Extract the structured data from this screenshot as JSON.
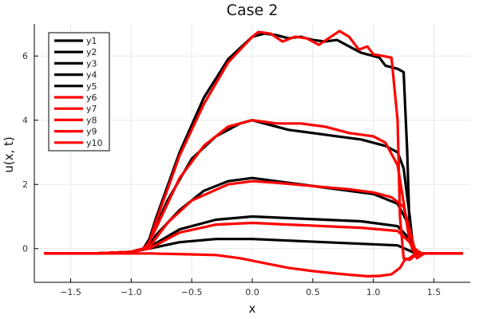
{
  "chart_data": {
    "type": "line",
    "title": "Case 2",
    "xlabel": "x",
    "ylabel": "u(x, t)",
    "xlim": [
      -1.8,
      1.8
    ],
    "ylim": [
      -1.05,
      7.0
    ],
    "xticks": [
      -1.5,
      -1.0,
      -0.5,
      0.0,
      0.5,
      1.0,
      1.5
    ],
    "xtick_labels": [
      "−1.5",
      "−1.0",
      "−0.5",
      "0.0",
      "0.5",
      "1.0",
      "1.5"
    ],
    "yticks": [
      0,
      2,
      4,
      6
    ],
    "ytick_labels": [
      "0",
      "2",
      "4",
      "6"
    ],
    "grid": true,
    "legend_position": "top-left",
    "colors": {
      "black": "#000000",
      "red": "#ff0000",
      "grid": "#e8e8e8",
      "frame": "#000000"
    },
    "series": [
      {
        "name": "y1",
        "color": "#000000",
        "x": [
          -1.72,
          -1.3,
          -1.0,
          -0.9,
          -0.85,
          -0.8,
          -0.6,
          -0.4,
          -0.2,
          0.0,
          0.1,
          0.2,
          0.3,
          0.4,
          0.5,
          0.6,
          0.7,
          0.8,
          0.9,
          1.0,
          1.05,
          1.1,
          1.15,
          1.2,
          1.25,
          1.28,
          1.3,
          1.32,
          1.35,
          1.4,
          1.5,
          1.74
        ],
        "y": [
          -0.15,
          -0.15,
          -0.1,
          0.0,
          0.3,
          0.9,
          3.0,
          4.7,
          5.9,
          6.6,
          6.7,
          6.65,
          6.55,
          6.6,
          6.5,
          6.45,
          6.5,
          6.3,
          6.1,
          6.0,
          5.95,
          5.7,
          5.65,
          5.6,
          5.5,
          3.0,
          0.5,
          0.0,
          -0.15,
          -0.15,
          -0.15,
          -0.15
        ]
      },
      {
        "name": "y2",
        "color": "#000000",
        "x": [
          -1.72,
          -1.3,
          -1.0,
          -0.88,
          -0.82,
          -0.7,
          -0.5,
          -0.3,
          -0.1,
          0.0,
          0.1,
          0.3,
          0.5,
          0.7,
          0.9,
          1.1,
          1.2,
          1.25,
          1.3,
          1.33,
          1.4,
          1.74
        ],
        "y": [
          -0.15,
          -0.15,
          -0.1,
          0.0,
          0.5,
          1.5,
          2.8,
          3.5,
          3.9,
          4.0,
          3.9,
          3.7,
          3.6,
          3.5,
          3.4,
          3.2,
          3.0,
          2.5,
          1.0,
          0.0,
          -0.15,
          -0.15
        ]
      },
      {
        "name": "y3",
        "color": "#000000",
        "x": [
          -1.72,
          -1.3,
          -1.0,
          -0.86,
          -0.8,
          -0.6,
          -0.4,
          -0.2,
          0.0,
          0.2,
          0.4,
          0.6,
          0.8,
          1.0,
          1.2,
          1.27,
          1.32,
          1.38,
          1.74
        ],
        "y": [
          -0.15,
          -0.15,
          -0.1,
          0.0,
          0.4,
          1.2,
          1.8,
          2.1,
          2.2,
          2.1,
          2.0,
          1.9,
          1.8,
          1.7,
          1.4,
          0.9,
          0.1,
          -0.15,
          -0.15
        ]
      },
      {
        "name": "y4",
        "color": "#000000",
        "x": [
          -1.72,
          -1.3,
          -1.0,
          -0.85,
          -0.6,
          -0.3,
          0.0,
          0.3,
          0.6,
          0.9,
          1.2,
          1.3,
          1.36,
          1.74
        ],
        "y": [
          -0.15,
          -0.15,
          -0.1,
          0.05,
          0.6,
          0.9,
          1.0,
          0.95,
          0.9,
          0.85,
          0.7,
          0.3,
          -0.15,
          -0.15
        ]
      },
      {
        "name": "y5",
        "color": "#000000",
        "x": [
          -1.72,
          -1.3,
          -1.0,
          -0.85,
          -0.6,
          -0.3,
          0.0,
          0.3,
          0.6,
          0.9,
          1.2,
          1.35,
          1.74
        ],
        "y": [
          -0.15,
          -0.15,
          -0.1,
          0.0,
          0.2,
          0.3,
          0.3,
          0.25,
          0.2,
          0.15,
          0.1,
          -0.15,
          -0.15
        ]
      },
      {
        "name": "y6",
        "color": "#ff0000",
        "x": [
          -1.72,
          -1.3,
          -1.0,
          -0.9,
          -0.85,
          -0.8,
          -0.6,
          -0.4,
          -0.2,
          0.0,
          0.05,
          0.15,
          0.25,
          0.35,
          0.45,
          0.55,
          0.65,
          0.72,
          0.8,
          0.88,
          0.95,
          1.0,
          1.08,
          1.15,
          1.2,
          1.22,
          1.25,
          1.3,
          1.35,
          1.4,
          1.74
        ],
        "y": [
          -0.15,
          -0.15,
          -0.1,
          0.0,
          0.2,
          0.8,
          2.9,
          4.5,
          5.8,
          6.6,
          6.75,
          6.7,
          6.45,
          6.6,
          6.55,
          6.35,
          6.6,
          6.78,
          6.6,
          6.2,
          6.3,
          6.05,
          6.0,
          5.95,
          4.0,
          1.0,
          -0.3,
          -0.35,
          -0.2,
          -0.15,
          -0.15
        ]
      },
      {
        "name": "y7",
        "color": "#ff0000",
        "x": [
          -1.72,
          -1.3,
          -1.0,
          -0.88,
          -0.8,
          -0.6,
          -0.4,
          -0.2,
          0.0,
          0.2,
          0.4,
          0.6,
          0.8,
          1.0,
          1.1,
          1.2,
          1.26,
          1.3,
          1.36,
          1.42,
          1.74
        ],
        "y": [
          -0.15,
          -0.15,
          -0.1,
          0.0,
          0.6,
          2.2,
          3.2,
          3.8,
          4.0,
          3.9,
          3.9,
          3.8,
          3.6,
          3.5,
          3.3,
          2.6,
          1.2,
          0.2,
          -0.3,
          -0.15,
          -0.15
        ]
      },
      {
        "name": "y8",
        "color": "#ff0000",
        "x": [
          -1.72,
          -1.3,
          -1.0,
          -0.86,
          -0.7,
          -0.5,
          -0.2,
          0.0,
          0.2,
          0.5,
          0.8,
          1.0,
          1.15,
          1.25,
          1.3,
          1.34,
          1.4,
          1.74
        ],
        "y": [
          -0.15,
          -0.15,
          -0.1,
          0.0,
          0.8,
          1.5,
          2.0,
          2.1,
          2.05,
          1.95,
          1.85,
          1.75,
          1.6,
          1.3,
          0.6,
          0.0,
          -0.15,
          -0.15
        ]
      },
      {
        "name": "y9",
        "color": "#ff0000",
        "x": [
          -1.72,
          -1.3,
          -1.0,
          -0.85,
          -0.6,
          -0.3,
          0.0,
          0.3,
          0.6,
          0.9,
          1.2,
          1.3,
          1.37,
          1.74
        ],
        "y": [
          -0.15,
          -0.15,
          -0.1,
          0.0,
          0.5,
          0.75,
          0.8,
          0.75,
          0.7,
          0.65,
          0.55,
          0.2,
          -0.15,
          -0.15
        ]
      },
      {
        "name": "y10",
        "color": "#ff0000",
        "x": [
          -1.72,
          -1.3,
          -1.0,
          -0.85,
          -0.6,
          -0.3,
          -0.1,
          0.1,
          0.3,
          0.5,
          0.7,
          0.85,
          0.95,
          1.05,
          1.15,
          1.22,
          1.26,
          1.3,
          1.35,
          1.74
        ],
        "y": [
          -0.15,
          -0.15,
          -0.15,
          -0.15,
          -0.17,
          -0.2,
          -0.3,
          -0.45,
          -0.6,
          -0.7,
          -0.78,
          -0.83,
          -0.86,
          -0.85,
          -0.8,
          -0.6,
          -0.35,
          -0.3,
          -0.15,
          -0.15
        ]
      }
    ]
  }
}
